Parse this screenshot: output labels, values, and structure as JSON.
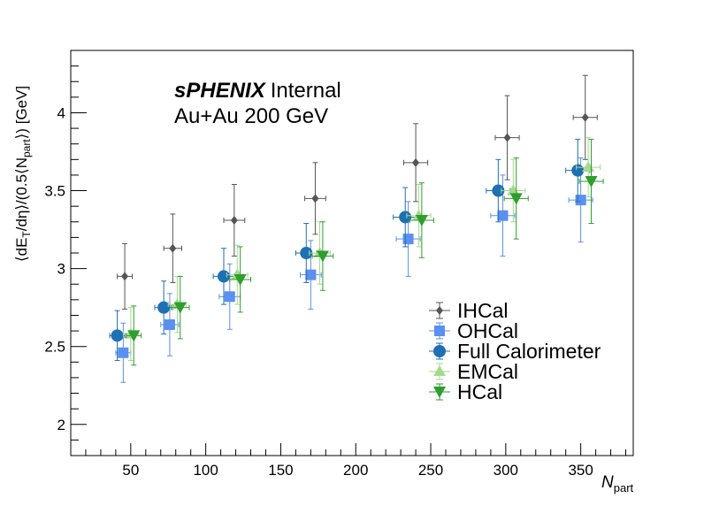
{
  "chart_data": {
    "type": "scatter",
    "annotation": {
      "line1_bold": "sPHENIX",
      "line1_rest": "Internal",
      "line2": "Au+Au 200 GeV"
    },
    "xlabel": {
      "main": "N",
      "sub": "part"
    },
    "ylabel": {
      "p1": "⟨dE",
      "p1_sub": "T",
      "p2": "/dη⟩/(0.5⟨N",
      "p2_sub": "part",
      "p3": "⟩) [GeV]"
    },
    "xlim": [
      10,
      385
    ],
    "ylim": [
      1.8,
      4.4
    ],
    "x_ticks": [
      50,
      100,
      150,
      200,
      250,
      300,
      350
    ],
    "x_tick_labels": [
      "50",
      "100",
      "150",
      "200",
      "250",
      "300",
      "350"
    ],
    "y_ticks": [
      2,
      2.5,
      3,
      3.5,
      4
    ],
    "y_tick_labels": [
      "2",
      "2.5",
      "3",
      "3.5",
      "4"
    ],
    "legend_position": "center-right",
    "series": [
      {
        "name": "IHCal",
        "color": "#555555",
        "marker": "diamond",
        "x": [
          46,
          78,
          119,
          173,
          240,
          301,
          353
        ],
        "y": [
          2.95,
          3.13,
          3.31,
          3.45,
          3.68,
          3.84,
          3.97
        ],
        "yerr": [
          0.21,
          0.22,
          0.23,
          0.23,
          0.25,
          0.27,
          0.27
        ],
        "xerr": [
          5,
          6,
          7,
          7,
          8,
          8,
          8
        ]
      },
      {
        "name": "OHCal",
        "color": "#5b8ff0",
        "marker": "square",
        "x": [
          45,
          76,
          116,
          170,
          235,
          298,
          350
        ],
        "y": [
          2.46,
          2.64,
          2.82,
          2.96,
          3.19,
          3.34,
          3.44
        ],
        "yerr": [
          0.19,
          0.2,
          0.21,
          0.22,
          0.24,
          0.26,
          0.27
        ],
        "xerr": [
          5,
          6,
          7,
          7,
          8,
          8,
          8
        ]
      },
      {
        "name": "Full Calorimeter",
        "color": "#1f6fb4",
        "marker": "circle",
        "x": [
          41,
          72,
          112,
          167,
          233,
          295,
          348
        ],
        "y": [
          2.57,
          2.75,
          2.95,
          3.1,
          3.33,
          3.5,
          3.63
        ],
        "yerr": [
          0.16,
          0.17,
          0.18,
          0.19,
          0.19,
          0.2,
          0.2
        ],
        "xerr": [
          5,
          6,
          7,
          7,
          8,
          8,
          8
        ]
      },
      {
        "name": "EMCal",
        "color": "#a6d98c",
        "marker": "triangle-up",
        "x": [
          50,
          81,
          121,
          176,
          242,
          305,
          355
        ],
        "y": [
          2.58,
          2.77,
          2.96,
          3.1,
          3.34,
          3.5,
          3.65
        ],
        "yerr": [
          0.17,
          0.18,
          0.19,
          0.2,
          0.2,
          0.2,
          0.19
        ],
        "xerr": [
          5,
          6,
          7,
          7,
          8,
          8,
          8
        ]
      },
      {
        "name": "HCal",
        "color": "#2e9e2e",
        "marker": "triangle-down",
        "x": [
          52,
          83,
          123,
          178,
          244,
          307,
          357
        ],
        "y": [
          2.57,
          2.75,
          2.93,
          3.08,
          3.31,
          3.45,
          3.56
        ],
        "yerr": [
          0.19,
          0.2,
          0.21,
          0.22,
          0.24,
          0.26,
          0.27
        ],
        "xerr": [
          5,
          6,
          7,
          7,
          8,
          8,
          8
        ]
      }
    ]
  }
}
